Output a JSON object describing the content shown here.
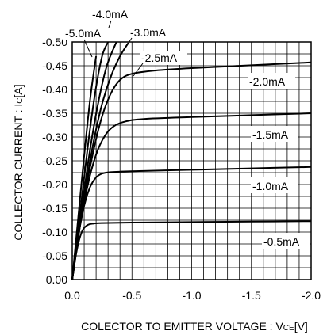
{
  "chart_data": {
    "type": "line",
    "xlabel": {
      "main": "COLECTOR TO EMITTER VOLTAGE : V",
      "sub": "CE",
      "unit": "[V]"
    },
    "ylabel": {
      "main": "COLLECTOR CURRENT : I",
      "sub": "C",
      "unit": "[A]"
    },
    "xlim": [
      0,
      -2.0
    ],
    "ylim": [
      0,
      -0.5
    ],
    "grid": true,
    "x_ticks": [
      {
        "value": 0,
        "label": "0.0"
      },
      {
        "value": -0.5,
        "label": "-0.5"
      },
      {
        "value": -1.0,
        "label": "-1.0"
      },
      {
        "value": -1.5,
        "label": "-1.5"
      },
      {
        "value": -2.0,
        "label": "-2.0"
      }
    ],
    "y_ticks": [
      {
        "value": 0,
        "label": "0.00"
      },
      {
        "value": -0.05,
        "label": "-0.05"
      },
      {
        "value": -0.1,
        "label": "-0.10"
      },
      {
        "value": -0.15,
        "label": "-0.15"
      },
      {
        "value": -0.2,
        "label": "-0.20"
      },
      {
        "value": -0.25,
        "label": "-0.25"
      },
      {
        "value": -0.3,
        "label": "-0.30"
      },
      {
        "value": -0.35,
        "label": "-0.35"
      },
      {
        "value": -0.4,
        "label": "-0.40"
      },
      {
        "value": -0.45,
        "label": "-0.45"
      },
      {
        "value": -0.5,
        "label": "-0.50"
      }
    ],
    "series": [
      {
        "name": "-0.5mA",
        "x": [
          0,
          -0.03,
          -0.06,
          -0.09,
          -0.13,
          -0.18,
          -0.25,
          -0.5,
          -1.0,
          -1.5,
          -2.0
        ],
        "y": [
          0,
          -0.05,
          -0.085,
          -0.105,
          -0.115,
          -0.118,
          -0.119,
          -0.12,
          -0.121,
          -0.122,
          -0.123
        ]
      },
      {
        "name": "-1.0mA",
        "x": [
          0,
          -0.05,
          -0.1,
          -0.15,
          -0.2,
          -0.25,
          -0.32,
          -0.5,
          -1.0,
          -1.5,
          -2.0
        ],
        "y": [
          0,
          -0.09,
          -0.155,
          -0.195,
          -0.215,
          -0.223,
          -0.226,
          -0.228,
          -0.231,
          -0.234,
          -0.237
        ]
      },
      {
        "name": "-1.5mA",
        "x": [
          0,
          -0.07,
          -0.14,
          -0.21,
          -0.28,
          -0.35,
          -0.45,
          -0.6,
          -1.0,
          -1.5,
          -2.0
        ],
        "y": [
          0,
          -0.12,
          -0.21,
          -0.27,
          -0.305,
          -0.323,
          -0.333,
          -0.338,
          -0.342,
          -0.346,
          -0.35
        ]
      },
      {
        "name": "-2.0mA",
        "x": [
          0,
          -0.08,
          -0.16,
          -0.24,
          -0.32,
          -0.4,
          -0.5,
          -0.7,
          -1.0,
          -1.5,
          -2.0
        ],
        "y": [
          0,
          -0.14,
          -0.25,
          -0.335,
          -0.39,
          -0.42,
          -0.433,
          -0.44,
          -0.445,
          -0.451,
          -0.457
        ]
      },
      {
        "name": "-2.5mA",
        "x": [
          0,
          -0.08,
          -0.16,
          -0.24,
          -0.32,
          -0.4,
          -0.47
        ],
        "y": [
          0,
          -0.14,
          -0.265,
          -0.36,
          -0.425,
          -0.47,
          -0.498
        ]
      },
      {
        "name": "-3.0mA",
        "x": [
          0,
          -0.08,
          -0.15,
          -0.22,
          -0.29,
          -0.37
        ],
        "y": [
          0,
          -0.15,
          -0.275,
          -0.375,
          -0.45,
          -0.5
        ]
      },
      {
        "name": "-4.0mA",
        "x": [
          0,
          -0.07,
          -0.13,
          -0.19,
          -0.25,
          -0.3
        ],
        "y": [
          0,
          -0.15,
          -0.28,
          -0.39,
          -0.47,
          -0.5
        ]
      },
      {
        "name": "-5.0mA",
        "x": [
          0,
          -0.05,
          -0.1,
          -0.15,
          -0.2
        ],
        "y": [
          0,
          -0.13,
          -0.26,
          -0.38,
          -0.47
        ]
      }
    ]
  }
}
